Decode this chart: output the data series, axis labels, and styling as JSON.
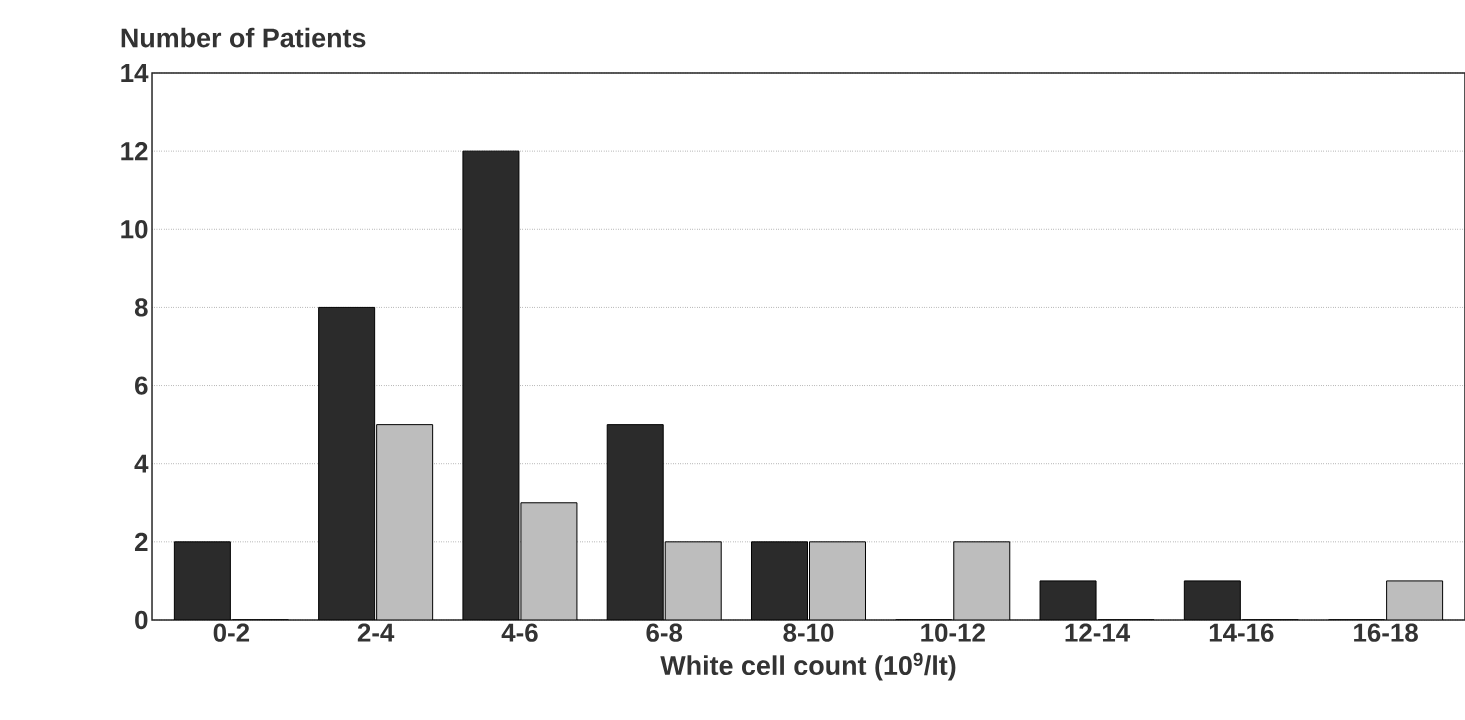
{
  "chart_data": {
    "type": "bar",
    "ylabel": "Number of Patients",
    "xlabel": "White cell count (10$^{9}$/lt)",
    "categories": [
      "0-2",
      "2-4",
      "4-6",
      "6-8",
      "8-10",
      "10-12",
      "12-14",
      "14-16",
      "16-18"
    ],
    "series": [
      {
        "color": "#2b2b2b",
        "values": [
          2,
          8,
          12,
          5,
          2,
          0,
          1,
          1,
          0
        ]
      },
      {
        "color": "#bdbdbd",
        "values": [
          0,
          5,
          3,
          2,
          2,
          2,
          0,
          0,
          1
        ]
      }
    ],
    "ylim": [
      0,
      14
    ],
    "yticks": [
      0,
      2,
      4,
      6,
      8,
      10,
      12,
      14
    ],
    "grid": "y"
  }
}
